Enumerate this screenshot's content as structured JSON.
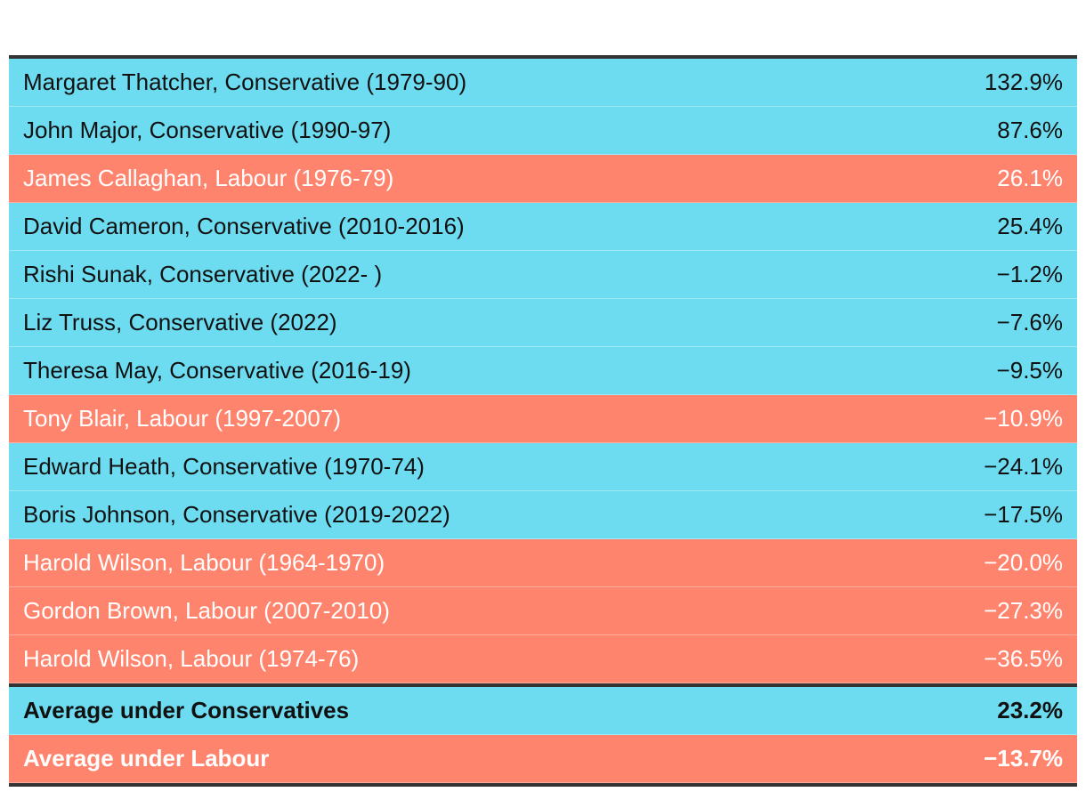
{
  "chart_data": {
    "type": "table",
    "party_colors": {
      "Conservative": "#6ddcf0",
      "Labour": "#ff846e"
    },
    "text_colors": {
      "Conservative": "#111111",
      "Labour": "#ffffff"
    },
    "rows": [
      {
        "name": "Margaret Thatcher, Conservative (1979-90)",
        "party": "Conservative",
        "value": "132.9%"
      },
      {
        "name": "John Major, Conservative (1990-97)",
        "party": "Conservative",
        "value": "87.6%"
      },
      {
        "name": "James Callaghan, Labour (1976-79)",
        "party": "Labour",
        "value": "26.1%"
      },
      {
        "name": "David Cameron, Conservative (2010-2016)",
        "party": "Conservative",
        "value": "25.4%"
      },
      {
        "name": "Rishi Sunak, Conservative (2022- )",
        "party": "Conservative",
        "value": "−1.2%"
      },
      {
        "name": "Liz Truss, Conservative (2022)",
        "party": "Conservative",
        "value": "−7.6%"
      },
      {
        "name": "Theresa May, Conservative (2016-19)",
        "party": "Conservative",
        "value": "−9.5%"
      },
      {
        "name": "Tony Blair, Labour (1997-2007)",
        "party": "Labour",
        "value": "−10.9%"
      },
      {
        "name": "Edward Heath, Conservative (1970-74)",
        "party": "Conservative",
        "value": "−24.1%"
      },
      {
        "name": "Boris Johnson, Conservative (2019-2022)",
        "party": "Conservative",
        "value": "−17.5%"
      },
      {
        "name": "Harold Wilson, Labour (1964-1970)",
        "party": "Labour",
        "value": "−20.0%"
      },
      {
        "name": "Gordon Brown, Labour (2007-2010)",
        "party": "Labour",
        "value": "−27.3%"
      },
      {
        "name": "Harold Wilson, Labour (1974-76)",
        "party": "Labour",
        "value": "−36.5%"
      }
    ],
    "summary": [
      {
        "name": "Average under Conservatives",
        "party": "Conservative",
        "value": "23.2%"
      },
      {
        "name": "Average under Labour",
        "party": "Labour",
        "value": "−13.7%"
      }
    ]
  }
}
